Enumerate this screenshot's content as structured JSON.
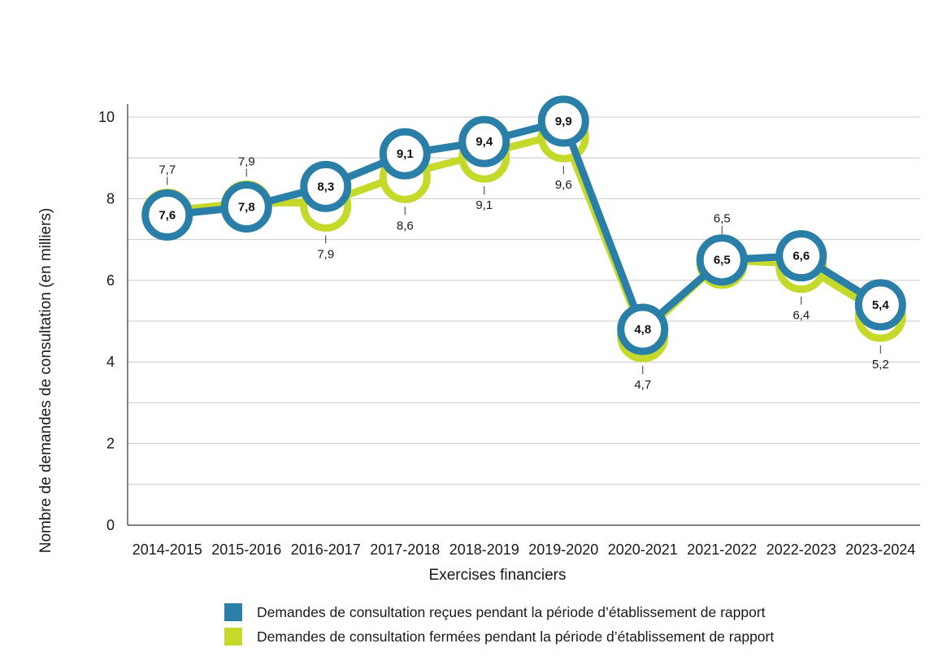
{
  "chart_data": {
    "type": "line",
    "xlabel": "Exercises financiers",
    "ylabel": "Nombre de demandes de consultation (en milliers)",
    "ylim": [
      0,
      10
    ],
    "yticks": [
      "0",
      "2",
      "4",
      "6",
      "8",
      "10"
    ],
    "grid": true,
    "categories": [
      "2014-2015",
      "2015-2016",
      "2016-2017",
      "2017-2018",
      "2018-2019",
      "2019-2020",
      "2020-2021",
      "2021-2022",
      "2022-2023",
      "2023-2024"
    ],
    "series": [
      {
        "name": "Demandes de consultation reçues pendant la période d’établissement de rapport",
        "color": "#2a7fa8",
        "values": [
          7.6,
          7.8,
          8.3,
          9.1,
          9.4,
          9.9,
          4.8,
          6.5,
          6.6,
          5.4
        ],
        "labels": [
          "7,6",
          "7,8",
          "8,3",
          "9,1",
          "9,4",
          "9,9",
          "4,8",
          "6,5",
          "6,6",
          "5,4"
        ]
      },
      {
        "name": "Demandes de consultation fermées pendant la période d’établissement de rapport",
        "color": "#c4d92a",
        "values": [
          7.7,
          7.9,
          7.9,
          8.6,
          9.1,
          9.6,
          4.7,
          6.5,
          6.4,
          5.2
        ],
        "labels": [
          "7,7",
          "7,9",
          "7,9",
          "8,6",
          "9,1",
          "9,6",
          "4,7",
          "6,5",
          "6,4",
          "5,2"
        ],
        "label_position": [
          "above",
          "above",
          "below",
          "below",
          "below",
          "below",
          "below",
          "above",
          "below",
          "below"
        ]
      }
    ],
    "legend": "bottom"
  }
}
